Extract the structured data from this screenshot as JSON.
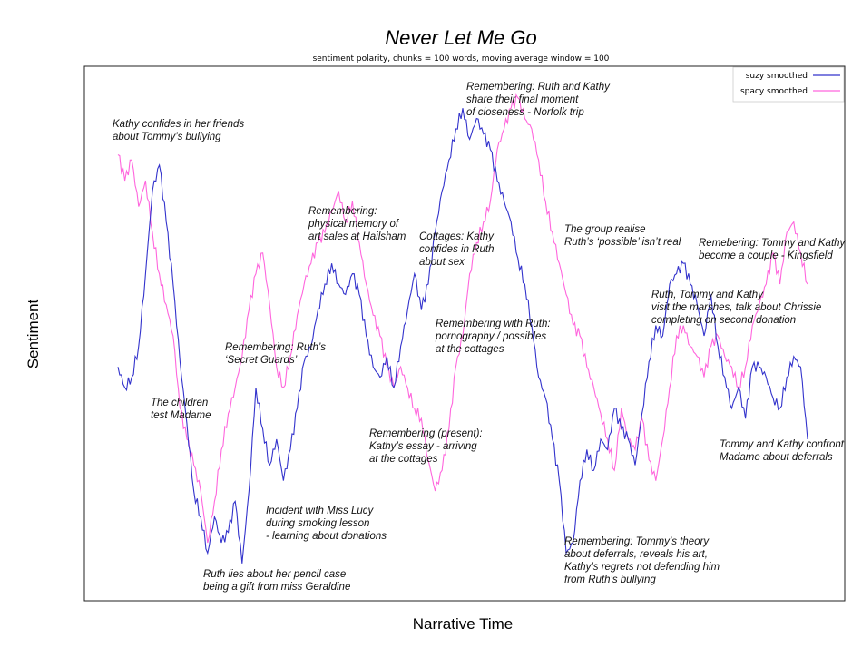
{
  "chart_data": {
    "type": "line",
    "title": "Never Let Me Go",
    "subtitle": "sentiment polarity,  chunks = 100 words, moving average window = 100",
    "xlabel": "Narrative Time",
    "ylabel": "Sentiment",
    "xlim": [
      0,
      100
    ],
    "ylim": [
      0,
      100
    ],
    "grid": false,
    "legend_position": "top-right",
    "series": [
      {
        "name": "suzy smoothed",
        "color": "#3333cc",
        "x": [
          0,
          1,
          2,
          3,
          4,
          5,
          6,
          7,
          8,
          9,
          10,
          11,
          12,
          13,
          14,
          15,
          16,
          17,
          18,
          19,
          20,
          21,
          22,
          23,
          24,
          25,
          26,
          27,
          28,
          29,
          30,
          31,
          32,
          33,
          34,
          35,
          36,
          37,
          38,
          39,
          40,
          41,
          42,
          43,
          44,
          45,
          46,
          47,
          48,
          49,
          50,
          51,
          52,
          53,
          54,
          55,
          56,
          57,
          58,
          59,
          60,
          61,
          62,
          63,
          64,
          65,
          66,
          67,
          68,
          69,
          70,
          71,
          72,
          73,
          74,
          75,
          76,
          77,
          78,
          79,
          80,
          81,
          82,
          83,
          84,
          85,
          86,
          87,
          88,
          89,
          90,
          91,
          92,
          93,
          94,
          95,
          96,
          97,
          98,
          99,
          100
        ],
        "y": [
          44,
          40,
          42,
          48,
          62,
          78,
          83,
          72,
          60,
          45,
          33,
          20,
          15,
          8,
          15,
          10,
          12,
          18,
          6,
          20,
          40,
          32,
          25,
          30,
          22,
          28,
          36,
          45,
          48,
          55,
          60,
          64,
          60,
          58,
          62,
          58,
          50,
          44,
          42,
          46,
          40,
          48,
          55,
          62,
          55,
          60,
          70,
          78,
          84,
          90,
          94,
          88,
          92,
          89,
          86,
          80,
          76,
          72,
          65,
          60,
          52,
          42,
          38,
          30,
          22,
          8,
          10,
          22,
          28,
          24,
          30,
          28,
          36,
          32,
          30,
          25,
          35,
          45,
          52,
          50,
          60,
          62,
          64,
          60,
          56,
          50,
          58,
          48,
          42,
          36,
          40,
          34,
          44,
          44,
          42,
          38,
          36,
          42,
          46,
          44,
          30
        ]
      },
      {
        "name": "spacy smoothed",
        "color": "#ff66dd",
        "x": [
          0,
          1,
          2,
          3,
          4,
          5,
          6,
          7,
          8,
          9,
          10,
          11,
          12,
          13,
          14,
          15,
          16,
          17,
          18,
          19,
          20,
          21,
          22,
          23,
          24,
          25,
          26,
          27,
          28,
          29,
          30,
          31,
          32,
          33,
          34,
          35,
          36,
          37,
          38,
          39,
          40,
          41,
          42,
          43,
          44,
          45,
          46,
          47,
          48,
          49,
          50,
          51,
          52,
          53,
          54,
          55,
          56,
          57,
          58,
          59,
          60,
          61,
          62,
          63,
          64,
          65,
          66,
          67,
          68,
          69,
          70,
          71,
          72,
          73,
          74,
          75,
          76,
          77,
          78,
          79,
          80,
          81,
          82,
          83,
          84,
          85,
          86,
          87,
          88,
          89,
          90,
          91,
          92,
          93,
          94,
          95,
          96,
          97,
          98,
          99,
          100
        ],
        "y": [
          85,
          80,
          84,
          75,
          80,
          70,
          62,
          56,
          50,
          36,
          30,
          25,
          20,
          10,
          18,
          28,
          35,
          40,
          46,
          55,
          62,
          66,
          56,
          44,
          40,
          46,
          54,
          60,
          64,
          68,
          70,
          74,
          78,
          72,
          76,
          68,
          60,
          54,
          50,
          44,
          40,
          44,
          40,
          36,
          34,
          26,
          20,
          24,
          32,
          44,
          50,
          62,
          68,
          72,
          76,
          86,
          90,
          94,
          96,
          92,
          90,
          84,
          76,
          70,
          64,
          58,
          52,
          50,
          44,
          40,
          35,
          30,
          24,
          36,
          30,
          28,
          34,
          26,
          22,
          30,
          40,
          50,
          52,
          48,
          46,
          42,
          48,
          50,
          46,
          44,
          40,
          44,
          52,
          56,
          60,
          66,
          60,
          70,
          72,
          66,
          60
        ]
      }
    ]
  },
  "legend": {
    "items": [
      {
        "label": "suzy smoothed",
        "color": "#3333cc"
      },
      {
        "label": "spacy smoothed",
        "color": "#ff66dd"
      }
    ]
  },
  "annotations": [
    {
      "lines": [
        "Kathy confides in her friends",
        "about Tommy’s bullying"
      ]
    },
    {
      "lines": [
        "The children",
        "test Madame"
      ]
    },
    {
      "lines": [
        "Ruth lies about her pencil case",
        "being a gift from miss Geraldine"
      ]
    },
    {
      "lines": [
        "Remembering: Ruth’s",
        "‘Secret Guards’"
      ]
    },
    {
      "lines": [
        "Incident with Miss Lucy",
        "during smoking lesson",
        "- learning about donations"
      ]
    },
    {
      "lines": [
        "Remembering:",
        "physical  memory of",
        "art sales at Hailsham"
      ]
    },
    {
      "lines": [
        "Remembering (present):",
        "Kathy’s essay - arriving",
        "at the cottages"
      ]
    },
    {
      "lines": [
        "Cottages: Kathy",
        "confides in Ruth",
        "about sex"
      ]
    },
    {
      "lines": [
        "Remembering with Ruth:",
        "pornography / possibles",
        "at the cottages"
      ]
    },
    {
      "lines": [
        "Remembering: Ruth and Kathy",
        "share their final moment",
        "of closeness - Norfolk trip"
      ]
    },
    {
      "lines": [
        "The group  realise",
        "Ruth’s ‘possible’  isn’t  real"
      ]
    },
    {
      "lines": [
        "Remembering: Tommy’s theory",
        "about deferrals,  reveals his art,",
        "Kathy’s  regrets  not defending him",
        "from Ruth’s bullying"
      ]
    },
    {
      "lines": [
        "Ruth, Tommy and Kathy",
        "visit the marshes, talk about Chrissie",
        "completing on second donation"
      ]
    },
    {
      "lines": [
        "Remebering: Tommy and Kathy",
        "become a couple - Kingsfield"
      ]
    },
    {
      "lines": [
        "Tommy and Kathy confront",
        "Madame  about deferrals"
      ]
    }
  ]
}
